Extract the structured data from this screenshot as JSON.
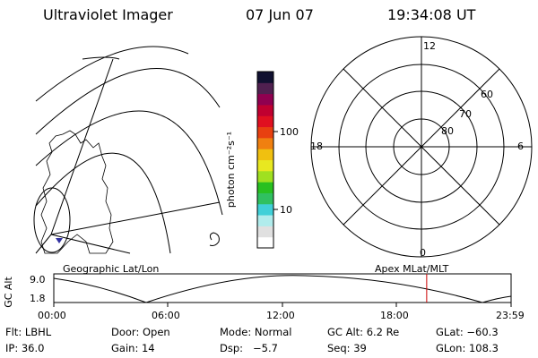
{
  "header": {
    "title": "Ultraviolet Imager",
    "date": "07 Jun 07",
    "time": "19:34:08 UT"
  },
  "colorbar": {
    "unit_label": "photon cm⁻²s⁻¹",
    "ticks": [
      "100",
      "10"
    ],
    "colors": [
      "#ffffff",
      "#e0e0e0",
      "#b0ecec",
      "#40d0d8",
      "#30c060",
      "#28c020",
      "#a0e020",
      "#e8e820",
      "#f0c010",
      "#f08010",
      "#e84010",
      "#e01020",
      "#c00030",
      "#900050",
      "#502050",
      "#101030"
    ]
  },
  "polar_plot": {
    "labels": [
      "12",
      "18",
      "6",
      "0",
      "60",
      "70",
      "80"
    ]
  },
  "timeline": {
    "left_title": "Geographic Lat/Lon",
    "right_title": "Apex MLat/MLT",
    "y_axis_label": "GC Alt",
    "y_ticks": [
      "9.0",
      "1.8"
    ],
    "x_ticks": [
      "00:00",
      "06:00",
      "12:00",
      "18:00",
      "23:59"
    ],
    "marker_time_hours": 19.57,
    "marker_color": "#cc0000"
  },
  "status": {
    "row1": [
      {
        "label": "Flt:",
        "value": "LBHL"
      },
      {
        "label": "Door:",
        "value": "Open"
      },
      {
        "label": "Mode:",
        "value": "Normal"
      },
      {
        "label": "GC Alt:",
        "value": "6.2 Re"
      },
      {
        "label": "GLat:",
        "value": "−60.3"
      }
    ],
    "row2": [
      {
        "label": "IP:",
        "value": "36.0"
      },
      {
        "label": "Gain:",
        "value": "14"
      },
      {
        "label": "Dsp:",
        "value": "−5.7"
      },
      {
        "label": "Seq:",
        "value": "39"
      },
      {
        "label": "GLon:",
        "value": "108.3"
      }
    ]
  }
}
